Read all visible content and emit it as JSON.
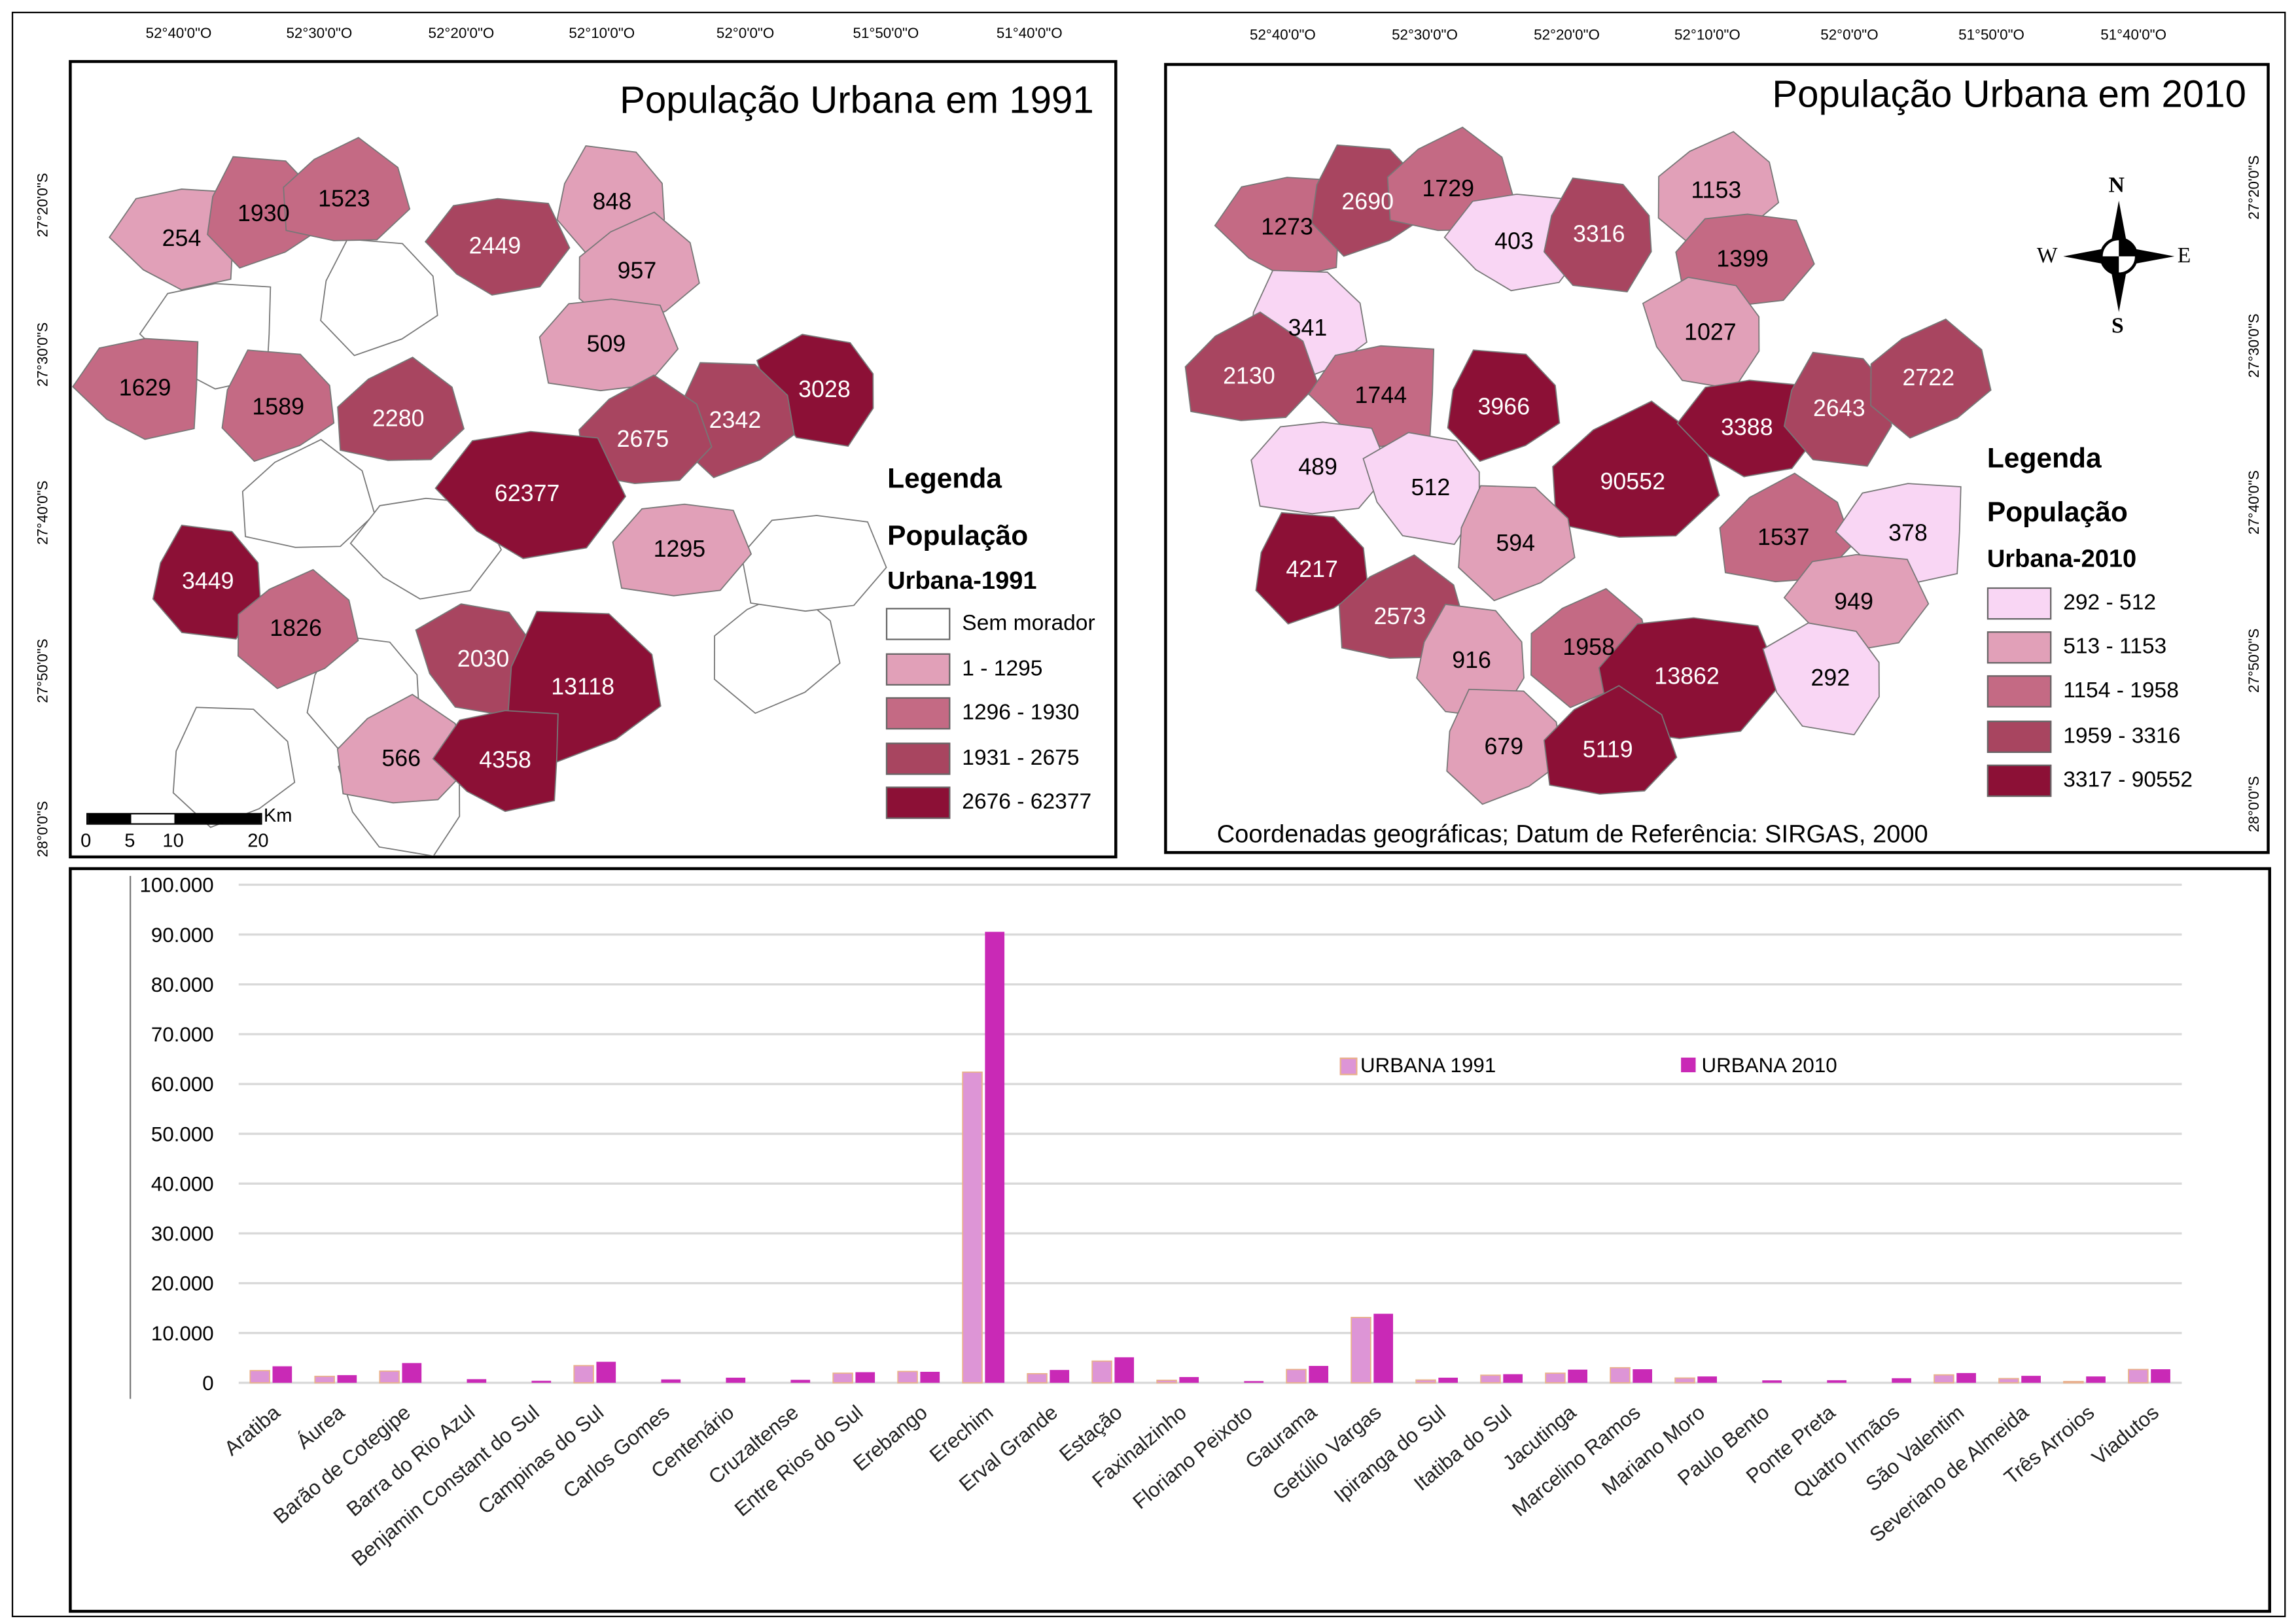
{
  "map1991": {
    "title": "População Urbana em 1991",
    "legend_title": "Legenda",
    "legend_sub1": "População",
    "legend_sub2": "Urbana-1991",
    "classes": [
      {
        "label": "Sem morador",
        "color": "#ffffff"
      },
      {
        "label": "1 - 1295",
        "color": "#e1a0b8"
      },
      {
        "label": "1296 - 1930",
        "color": "#c46a84"
      },
      {
        "label": "1931 - 2675",
        "color": "#a84560"
      },
      {
        "label": "2676 - 62377",
        "color": "#8c1036"
      }
    ],
    "lon_ticks": [
      "52°40'0\"O",
      "52°30'0\"O",
      "52°20'0\"O",
      "52°10'0\"O",
      "52°0'0\"O",
      "51°50'0\"O",
      "51°40'0\"O"
    ],
    "lat_ticks": [
      "27°20'0\"S",
      "27°30'0\"S",
      "27°40'0\"S",
      "27°50'0\"S",
      "28°0'0\"S"
    ],
    "scale": {
      "labels": [
        "0",
        "5",
        "10",
        "20"
      ],
      "unit": "Km"
    },
    "regions": [
      {
        "v": "254",
        "c": 1
      },
      {
        "v": "1930",
        "c": 2
      },
      {
        "v": "1523",
        "c": 2
      },
      {
        "v": "2449",
        "c": 3
      },
      {
        "v": "848",
        "c": 1
      },
      {
        "v": "957",
        "c": 1
      },
      {
        "v": "509",
        "c": 1
      },
      {
        "v": "3028",
        "c": 4
      },
      {
        "v": "2342",
        "c": 3
      },
      {
        "v": "2675",
        "c": 3
      },
      {
        "v": "1629",
        "c": 2
      },
      {
        "v": "1589",
        "c": 2
      },
      {
        "v": "2280",
        "c": 3
      },
      {
        "v": "62377",
        "c": 4
      },
      {
        "v": "3449",
        "c": 4
      },
      {
        "v": "1826",
        "c": 2
      },
      {
        "v": "1295",
        "c": 1
      },
      {
        "v": "2030",
        "c": 3
      },
      {
        "v": "13118",
        "c": 4
      },
      {
        "v": "566",
        "c": 1
      },
      {
        "v": "4358",
        "c": 4
      }
    ]
  },
  "map2010": {
    "title": "População Urbana em 2010",
    "legend_title": "Legenda",
    "legend_sub1": "População",
    "legend_sub2": "Urbana-2010",
    "classes": [
      {
        "label": "292 - 512",
        "color": "#f9d6f4"
      },
      {
        "label": "513 - 1153",
        "color": "#e1a0b8"
      },
      {
        "label": "1154 - 1958",
        "color": "#c46a84"
      },
      {
        "label": "1959 - 3316",
        "color": "#a84560"
      },
      {
        "label": "3317 - 90552",
        "color": "#8c1036"
      }
    ],
    "lon_ticks": [
      "52°40'0\"O",
      "52°30'0\"O",
      "52°20'0\"O",
      "52°10'0\"O",
      "52°0'0\"O",
      "51°50'0\"O",
      "51°40'0\"O"
    ],
    "lat_ticks": [
      "27°20'0\"S",
      "27°30'0\"S",
      "27°40'0\"S",
      "27°50'0\"S",
      "28°0'0\"S"
    ],
    "compass": {
      "n": "N",
      "s": "S",
      "e": "E",
      "w": "W"
    },
    "footer": "Coordenadas geográficas; Datum de Referência: SIRGAS, 2000",
    "regions": [
      {
        "v": "1273",
        "c": 2
      },
      {
        "v": "2690",
        "c": 3
      },
      {
        "v": "1729",
        "c": 2
      },
      {
        "v": "403",
        "c": 0
      },
      {
        "v": "3316",
        "c": 3
      },
      {
        "v": "1153",
        "c": 1
      },
      {
        "v": "1399",
        "c": 2
      },
      {
        "v": "1027",
        "c": 1
      },
      {
        "v": "341",
        "c": 0
      },
      {
        "v": "2130",
        "c": 3
      },
      {
        "v": "1744",
        "c": 2
      },
      {
        "v": "3966",
        "c": 4
      },
      {
        "v": "90552",
        "c": 4
      },
      {
        "v": "3388",
        "c": 4
      },
      {
        "v": "2643",
        "c": 3
      },
      {
        "v": "2722",
        "c": 3
      },
      {
        "v": "489",
        "c": 0
      },
      {
        "v": "512",
        "c": 0
      },
      {
        "v": "594",
        "c": 1
      },
      {
        "v": "1537",
        "c": 2
      },
      {
        "v": "378",
        "c": 0
      },
      {
        "v": "4217",
        "c": 4
      },
      {
        "v": "2573",
        "c": 3
      },
      {
        "v": "949",
        "c": 1
      },
      {
        "v": "916",
        "c": 1
      },
      {
        "v": "1958",
        "c": 2
      },
      {
        "v": "13862",
        "c": 4
      },
      {
        "v": "292",
        "c": 0
      },
      {
        "v": "679",
        "c": 1
      },
      {
        "v": "5119",
        "c": 4
      }
    ]
  },
  "chart_data": {
    "type": "bar",
    "title": "",
    "xlabel": "",
    "ylabel": "",
    "ylim": [
      0,
      100000
    ],
    "grid": true,
    "legend": "top-right",
    "y_tick_labels": [
      "0",
      "10.000",
      "20.000",
      "30.000",
      "40.000",
      "50.000",
      "60.000",
      "70.000",
      "80.000",
      "90.000",
      "100.000"
    ],
    "categories": [
      "Aratiba",
      "Áurea",
      "Barão de Cotegipe",
      "Barra do Rio Azul",
      "Benjamin Constant do Sul",
      "Campinas do Sul",
      "Carlos Gomes",
      "Centenário",
      "Cruzaltense",
      "Entre Rios do Sul",
      "Erebango",
      "Erechim",
      "Erval Grande",
      "Estação",
      "Faxinalzinho",
      "Floriano Peixoto",
      "Gaurama",
      "Getúlio Vargas",
      "Ipiranga do Sul",
      "Itatiba do Sul",
      "Jacutinga",
      "Marcelino Ramos",
      "Mariano Moro",
      "Paulo Bento",
      "Ponte Preta",
      "Quatro Irmãos",
      "São Valentim",
      "Severiano de Almeida",
      "Três Arroios",
      "Viadutos"
    ],
    "series": [
      {
        "name": "URBANA 1991",
        "color": "#dd95d6",
        "values": [
          2449,
          1295,
          2342,
          0,
          0,
          3449,
          0,
          0,
          0,
          1930,
          2280,
          62377,
          1826,
          4358,
          509,
          0,
          2675,
          13118,
          566,
          1523,
          1929,
          3028,
          957,
          0,
          0,
          0,
          1589,
          848,
          254,
          2675
        ]
      },
      {
        "name": "URBANA 2010",
        "color": "#c929b6",
        "values": [
          3316,
          1537,
          3966,
          729,
          403,
          4217,
          679,
          1027,
          594,
          2130,
          2205,
          90552,
          2573,
          5119,
          1153,
          341,
          3388,
          13862,
          1027,
          1729,
          2643,
          2722,
          1273,
          489,
          512,
          916,
          1958,
          1399,
          1273,
          2722
        ]
      }
    ]
  }
}
